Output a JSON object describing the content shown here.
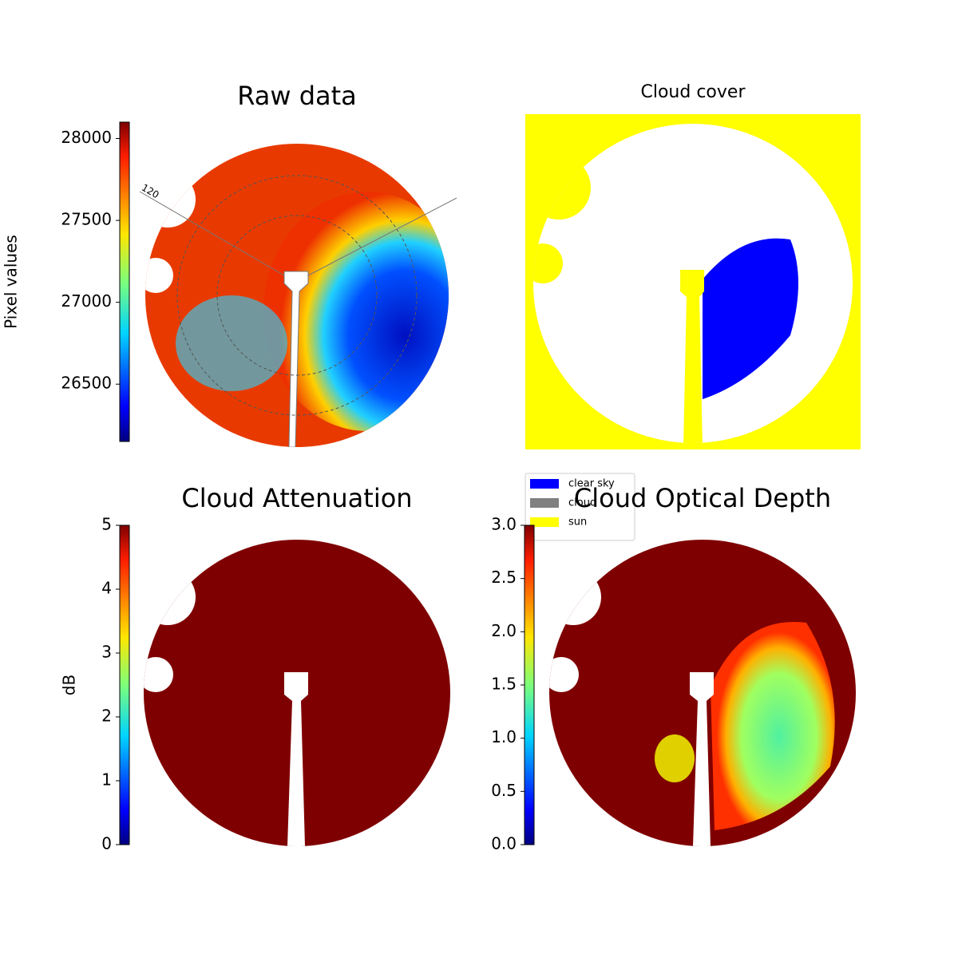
{
  "chart_data": [
    {
      "type": "image",
      "title": "Raw data",
      "annotations": [
        "120"
      ],
      "colorbar": {
        "label": "Pixel values",
        "lim": [
          26150,
          28100
        ],
        "ticks": [
          26500,
          27000,
          27500,
          28000
        ],
        "colormap": "jet"
      }
    },
    {
      "type": "categorical-image",
      "title": "Cloud cover",
      "legend": {
        "entries": [
          {
            "name": "clear sky",
            "color": "#0000ff"
          },
          {
            "name": "cloud",
            "color": "#808080"
          },
          {
            "name": "sun",
            "color": "#ffff00"
          }
        ]
      }
    },
    {
      "type": "image",
      "title": "Cloud Attenuation",
      "colorbar": {
        "label": "dB",
        "lim": [
          0,
          5
        ],
        "ticks": [
          0,
          1,
          2,
          3,
          4,
          5
        ],
        "colormap": "jet"
      }
    },
    {
      "type": "image",
      "title": "Cloud Optical Depth",
      "colorbar": {
        "lim": [
          0,
          3
        ],
        "ticks": [
          {
            "value": 0,
            "label": "0.0"
          },
          {
            "value": 0.5,
            "label": "0.5"
          },
          {
            "value": 1,
            "label": "1.0"
          },
          {
            "value": 1.5,
            "label": "1.5"
          },
          {
            "value": 2,
            "label": "2.0"
          },
          {
            "value": 2.5,
            "label": "2.5"
          },
          {
            "value": 3,
            "label": "3.0"
          }
        ],
        "colormap": "jet"
      }
    }
  ]
}
